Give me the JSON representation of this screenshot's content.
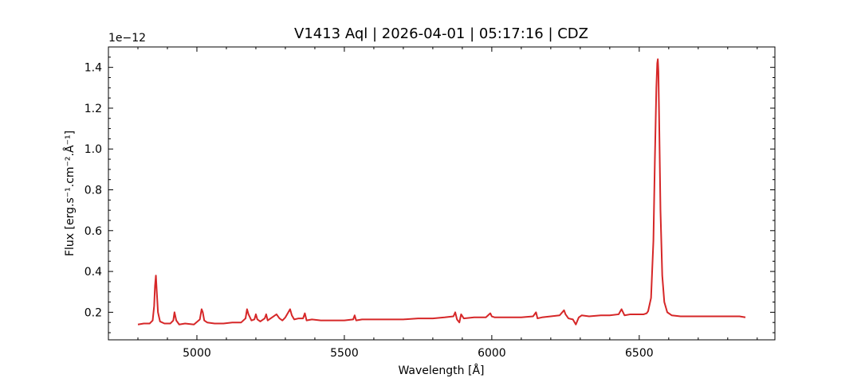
{
  "chart_data": {
    "type": "line",
    "title": "V1413 Aql | 2026-04-01 | 05:17:16 | CDZ",
    "xlabel": "Wavelength [Å]",
    "ylabel": "Flux [erg.s⁻¹.cm⁻².Å⁻¹]",
    "y_offset_label": "1e−12",
    "xlim": [
      4700,
      6960
    ],
    "ylim": [
      0.065,
      1.5
    ],
    "xticks": [
      5000,
      5500,
      6000,
      6500
    ],
    "xtick_labels": [
      "5000",
      "5500",
      "6000",
      "6500"
    ],
    "yticks": [
      0.2,
      0.4,
      0.6,
      0.8,
      1.0,
      1.2,
      1.4
    ],
    "ytick_labels": [
      "0.2",
      "0.4",
      "0.6",
      "0.8",
      "1.0",
      "1.2",
      "1.4"
    ],
    "grid": false,
    "line_color": "#d62728",
    "series": [
      {
        "x": [
          4800,
          4820,
          4840,
          4850,
          4855,
          4858,
          4861,
          4864,
          4868,
          4875,
          4890,
          4910,
          4920,
          4924,
          4930,
          4940,
          4960,
          4990,
          5010,
          5016,
          5020,
          5025,
          5035,
          5060,
          5090,
          5120,
          5150,
          5165,
          5170,
          5175,
          5185,
          5195,
          5200,
          5205,
          5215,
          5230,
          5235,
          5240,
          5255,
          5270,
          5280,
          5290,
          5300,
          5310,
          5316,
          5322,
          5330,
          5345,
          5360,
          5366,
          5372,
          5390,
          5420,
          5450,
          5500,
          5530,
          5535,
          5540,
          5560,
          5600,
          5650,
          5700,
          5750,
          5800,
          5840,
          5870,
          5876,
          5882,
          5890,
          5896,
          5905,
          5940,
          5980,
          5995,
          6000,
          6010,
          6050,
          6100,
          6140,
          6150,
          6155,
          6170,
          6200,
          6230,
          6245,
          6250,
          6260,
          6275,
          6285,
          6295,
          6300,
          6305,
          6330,
          6370,
          6400,
          6430,
          6440,
          6450,
          6470,
          6500,
          6515,
          6525,
          6530,
          6540,
          6548,
          6553,
          6558,
          6561,
          6563,
          6565,
          6568,
          6572,
          6578,
          6585,
          6595,
          6610,
          6640,
          6680,
          6720,
          6760,
          6800,
          6840,
          6860
        ],
        "y": [
          0.14,
          0.145,
          0.145,
          0.16,
          0.23,
          0.33,
          0.38,
          0.3,
          0.2,
          0.155,
          0.145,
          0.145,
          0.16,
          0.2,
          0.16,
          0.14,
          0.145,
          0.14,
          0.165,
          0.215,
          0.2,
          0.16,
          0.15,
          0.145,
          0.145,
          0.15,
          0.15,
          0.17,
          0.215,
          0.19,
          0.16,
          0.165,
          0.19,
          0.165,
          0.155,
          0.17,
          0.19,
          0.16,
          0.175,
          0.19,
          0.17,
          0.16,
          0.175,
          0.2,
          0.215,
          0.185,
          0.165,
          0.17,
          0.17,
          0.195,
          0.16,
          0.165,
          0.16,
          0.16,
          0.16,
          0.165,
          0.185,
          0.16,
          0.165,
          0.165,
          0.165,
          0.165,
          0.17,
          0.17,
          0.175,
          0.18,
          0.2,
          0.165,
          0.15,
          0.19,
          0.17,
          0.175,
          0.175,
          0.195,
          0.18,
          0.175,
          0.175,
          0.175,
          0.18,
          0.2,
          0.17,
          0.175,
          0.18,
          0.185,
          0.21,
          0.19,
          0.17,
          0.165,
          0.14,
          0.175,
          0.18,
          0.185,
          0.18,
          0.185,
          0.185,
          0.19,
          0.215,
          0.185,
          0.19,
          0.19,
          0.19,
          0.195,
          0.205,
          0.27,
          0.55,
          0.95,
          1.3,
          1.42,
          1.44,
          1.38,
          1.1,
          0.7,
          0.38,
          0.25,
          0.2,
          0.185,
          0.18,
          0.18,
          0.18,
          0.18,
          0.18,
          0.18,
          0.175
        ]
      }
    ]
  }
}
